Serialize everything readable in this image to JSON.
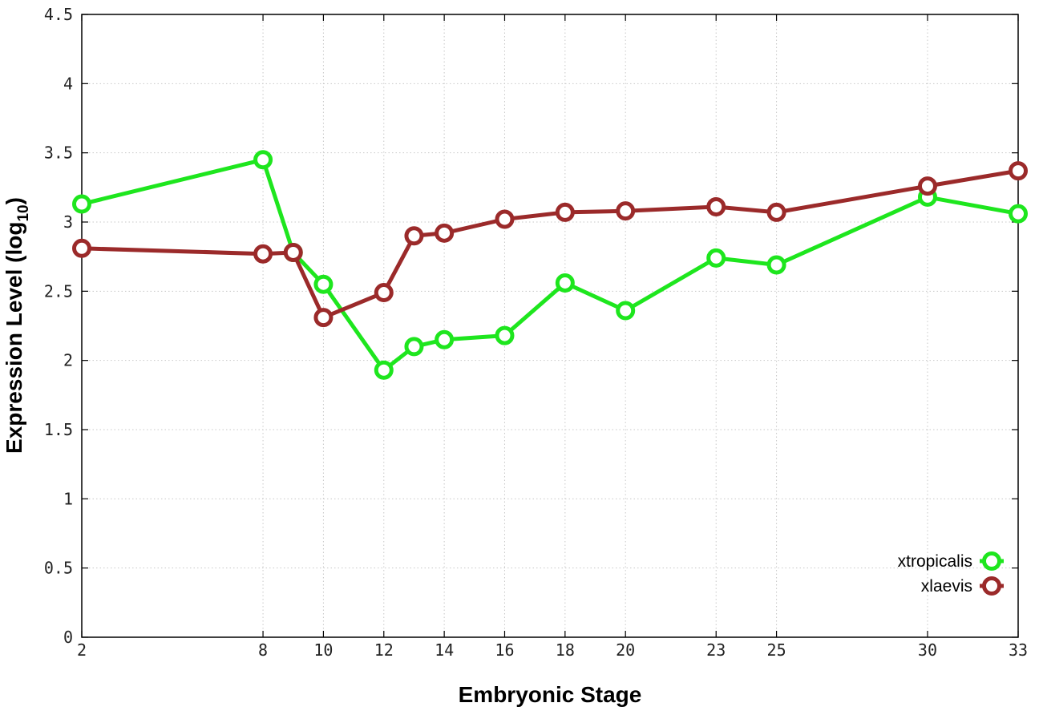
{
  "chart_data": {
    "type": "line",
    "xlabel": "Embryonic Stage",
    "ylabel_main": "Expression Level (log",
    "ylabel_sub": "10",
    "ylabel_close": ")",
    "xlim": [
      2,
      33
    ],
    "ylim": [
      0,
      4.5
    ],
    "x_ticks": [
      2,
      8,
      10,
      12,
      14,
      16,
      18,
      20,
      23,
      25,
      30,
      33
    ],
    "y_ticks": [
      {
        "value": 0,
        "label": "0"
      },
      {
        "value": 0.5,
        "label": "0.5"
      },
      {
        "value": 1,
        "label": "1"
      },
      {
        "value": 1.5,
        "label": "1.5"
      },
      {
        "value": 2,
        "label": "2"
      },
      {
        "value": 2.5,
        "label": "2.5"
      },
      {
        "value": 3,
        "label": "3"
      },
      {
        "value": 3.5,
        "label": "3.5"
      },
      {
        "value": 4,
        "label": "4"
      },
      {
        "value": 4.5,
        "label": "4.5"
      }
    ],
    "grid": true,
    "legend_position": "bottom-right",
    "series": [
      {
        "name": "xtropicalis",
        "color": "#1ee61e",
        "x": [
          2,
          8,
          9,
          10,
          12,
          13,
          14,
          16,
          18,
          20,
          23,
          25,
          30,
          33
        ],
        "y": [
          3.13,
          3.45,
          2.78,
          2.55,
          1.93,
          2.1,
          2.15,
          2.18,
          2.56,
          2.36,
          2.74,
          2.69,
          3.18,
          3.06
        ]
      },
      {
        "name": "xlaevis",
        "color": "#9b2a2a",
        "x": [
          2,
          8,
          9,
          10,
          12,
          13,
          14,
          16,
          18,
          20,
          23,
          25,
          30,
          33
        ],
        "y": [
          2.81,
          2.77,
          2.78,
          2.31,
          2.49,
          2.9,
          2.92,
          3.02,
          3.07,
          3.08,
          3.11,
          3.07,
          3.26,
          3.37
        ]
      }
    ]
  }
}
